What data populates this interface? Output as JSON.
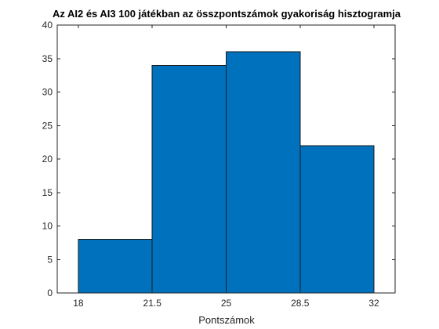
{
  "chart_data": {
    "type": "bar",
    "title": "Az AI2 és AI3 100 játékban az összpontszámok gyakoriság hisztogramja",
    "xlabel": "Pontszámok",
    "ylabel": "",
    "bins": [
      {
        "x0": 18,
        "x1": 21.5,
        "value": 8
      },
      {
        "x0": 21.5,
        "x1": 25,
        "value": 34
      },
      {
        "x0": 25,
        "x1": 28.5,
        "value": 36
      },
      {
        "x0": 28.5,
        "x1": 32,
        "value": 22
      }
    ],
    "xlim": [
      17,
      33
    ],
    "ylim": [
      0,
      40
    ],
    "xticks": [
      18,
      21.5,
      25,
      28.5,
      32
    ],
    "xtick_labels": [
      "18",
      "21.5",
      "25",
      "28.5",
      "32"
    ],
    "yticks": [
      0,
      5,
      10,
      15,
      20,
      25,
      30,
      35,
      40
    ],
    "ytick_labels": [
      "0",
      "5",
      "10",
      "15",
      "20",
      "25",
      "30",
      "35",
      "40"
    ],
    "bar_color": "#0072BD",
    "edge_color": "#1a1a1a",
    "grid": false,
    "legend": "none"
  }
}
